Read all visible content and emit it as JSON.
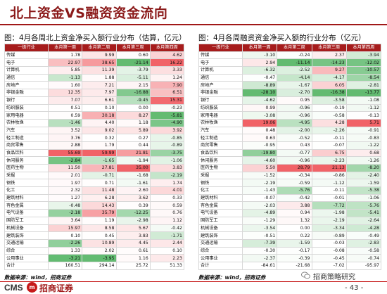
{
  "title": "北上资金VS融资资金流向",
  "left": {
    "subtitle": "图：4月各周北上资金净买入额行业分布（估算，亿元）",
    "headers": [
      "一级行业",
      "本月第一周",
      "本月第二周",
      "本月第三周",
      "本月第四周"
    ],
    "rows": [
      [
        "传媒",
        "1.78",
        "9.99",
        "0.60",
        "4.62"
      ],
      [
        "电子",
        "22.97",
        "38.65",
        "-21.14",
        "16.22"
      ],
      [
        "计算机",
        "5.85",
        "11.39",
        "-3.79",
        "3.33"
      ],
      [
        "通信",
        "-1.13",
        "1.88",
        "-5.11",
        "1.24"
      ],
      [
        "房地产",
        "1.60",
        "7.21",
        "2.15",
        "7.90"
      ],
      [
        "非银金融",
        "12.35",
        "7.97",
        "-16.88",
        "6.51"
      ],
      [
        "银行",
        "7.07",
        "6.61",
        "-9.45",
        "15.31"
      ],
      [
        "纺织服装",
        "0.51",
        "0.10",
        "0.00",
        "-0.23"
      ],
      [
        "家用电器",
        "0.59",
        "30.18",
        "8.27",
        "-5.81"
      ],
      [
        "农林牧渔",
        "-1.46",
        "4.40",
        "1.18",
        "-4.90"
      ],
      [
        "汽车",
        "3.52",
        "9.02",
        "5.89",
        "3.92"
      ],
      [
        "轻工制造",
        "3.76",
        "0.32",
        "0.27",
        "-0.85"
      ],
      [
        "商贸零售",
        "2.88",
        "1.79",
        "0.44",
        "-0.89"
      ],
      [
        "食品饮料",
        "55.69",
        "59.99",
        "21.81",
        "-3.75"
      ],
      [
        "休闲服务",
        "-2.84",
        "-1.65",
        "-1.94",
        "-1.06"
      ],
      [
        "医药生物",
        "11.50",
        "27.81",
        "35.00",
        "3.83"
      ],
      [
        "采掘",
        "2.01",
        "-0.71",
        "-1.68",
        "-2.19"
      ],
      [
        "钢铁",
        "1.97",
        "0.71",
        "-1.61",
        "1.74"
      ],
      [
        "化工",
        "2.32",
        "11.48",
        "2.60",
        "4.01"
      ],
      [
        "建筑材料",
        "1.27",
        "6.28",
        "3.62",
        "0.33"
      ],
      [
        "有色金属",
        "-0.48",
        "14.43",
        "0.39",
        "0.59"
      ],
      [
        "电气设备",
        "-2.18",
        "35.79",
        "-12.25",
        "0.76"
      ],
      [
        "国防军工",
        "3.64",
        "1.19",
        "-2.98",
        "1.12"
      ],
      [
        "机械设备",
        "15.97",
        "8.58",
        "5.67",
        "-0.42"
      ],
      [
        "建筑装饰",
        "0.10",
        "0.45",
        "3.83",
        "-1.71"
      ],
      [
        "交通运输",
        "-2.26",
        "10.89",
        "4.45",
        "2.44"
      ],
      [
        "综合",
        "1.33",
        "2.02",
        "0.61",
        "0.10"
      ],
      [
        "公用事业",
        "-3.21",
        "-3.95",
        "1.16",
        "2.23"
      ],
      [
        "合计",
        "160.51",
        "294.14",
        "25.72",
        "51.33"
      ]
    ],
    "source": "数据来源：wind，招商证券"
  },
  "right": {
    "subtitle": "图：4月各周融资资金净买入额的行业分布（亿元）",
    "headers": [
      "一级行业",
      "本月第一周",
      "本月第二周",
      "本月第三周",
      "本月第四周"
    ],
    "rows": [
      [
        "传媒",
        "-3.10",
        "-0.24",
        "2.37",
        "-3.94"
      ],
      [
        "电子",
        "2.94",
        "-11.14",
        "-14.23",
        "-12.02"
      ],
      [
        "计算机",
        "-6.32",
        "-2.52",
        "9.27",
        "-10.57"
      ],
      [
        "通信",
        "-0.47",
        "-4.14",
        "-4.17",
        "-8.54"
      ],
      [
        "房地产",
        "-8.89",
        "-1.67",
        "6.05",
        "-2.81"
      ],
      [
        "非银金融",
        "-28.10",
        "-2.70",
        "-16.38",
        "-13.77"
      ],
      [
        "银行",
        "-4.62",
        "0.95",
        "-3.58",
        "-1.08"
      ],
      [
        "纺织服装",
        "0.99",
        "-0.96",
        "-0.19",
        "-1.12"
      ],
      [
        "家用电器",
        "-3.08",
        "-0.96",
        "-0.58",
        "-0.13"
      ],
      [
        "农林牧渔",
        "19.06",
        "-4.95",
        "4.28",
        "5.71"
      ],
      [
        "汽车",
        "0.48",
        "-2.00",
        "-2.26",
        "-0.91"
      ],
      [
        "轻工制造",
        "0.63",
        "-0.52",
        "-0.11",
        "-0.83"
      ],
      [
        "商贸零售",
        "-0.95",
        "0.43",
        "-0.07",
        "-1.22"
      ],
      [
        "食品饮料",
        "-19.80",
        "-0.77",
        "6.75",
        "0.68"
      ],
      [
        "休闲服务",
        "-4.60",
        "-0.96",
        "-2.23",
        "-1.26"
      ],
      [
        "医药生物",
        "5.50",
        "28.79",
        "21.13",
        "-8.20"
      ],
      [
        "采掘",
        "-1.52",
        "-0.34",
        "-0.86",
        "-2.40"
      ],
      [
        "钢铁",
        "-2.19",
        "-0.59",
        "-1.12",
        "-1.59"
      ],
      [
        "化工",
        "-1.43",
        "-5.76",
        "-0.11",
        "-5.38"
      ],
      [
        "建筑材料",
        "-0.07",
        "-0.42",
        "-0.01",
        "-1.06"
      ],
      [
        "有色金属",
        "-2.03",
        "3.88",
        "-7.72",
        "-5.76"
      ],
      [
        "电气设备",
        "-4.89",
        "0.94",
        "-1.98",
        "-5.41"
      ],
      [
        "国防军工",
        "-1.29",
        "1.32",
        "-2.19",
        "-2.64"
      ],
      [
        "机械设备",
        "-3.54",
        "0.00",
        "-3.34",
        "-4.28"
      ],
      [
        "建筑装饰",
        "-0.51",
        "0.22",
        "-0.89",
        "-0.49"
      ],
      [
        "交通运输",
        "-7.39",
        "-1.59",
        "-0.03",
        "-2.83"
      ],
      [
        "综合",
        "-0.30",
        "-0.17",
        "-0.08",
        "-0.58"
      ],
      [
        "公用事业",
        "-2.37",
        "-0.39",
        "-0.45",
        "-0.74"
      ],
      [
        "合计",
        "-84.61",
        "-21.68",
        "-7.02",
        "-95.97"
      ]
    ],
    "source": "数据来源：wind，招商证券"
  },
  "footer": {
    "brand_en": "CMS",
    "logo_glyph": "m",
    "brand_cn": "招商证券",
    "wechat_label": "招商策略研究",
    "page": "- 43 -"
  },
  "colors": {
    "accent": "#a61c1c",
    "positive_max": "#f0545a",
    "negative_max": "#55b565"
  }
}
